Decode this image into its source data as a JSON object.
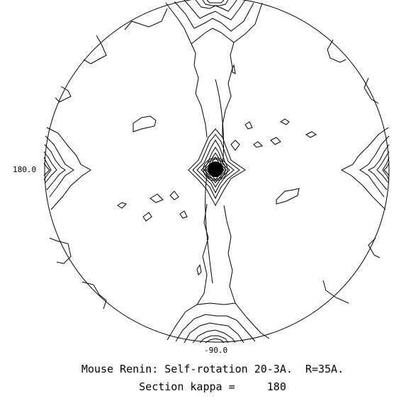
{
  "figure": {
    "left_label": "180.0",
    "bottom_label": "-90.0",
    "caption_line1": "Mouse Renin: Self-rotation 20-3A.  R=35A.",
    "caption_line2": "Section kappa =     180"
  },
  "colors": {
    "ink": "#000000",
    "background": "#ffffff"
  }
}
